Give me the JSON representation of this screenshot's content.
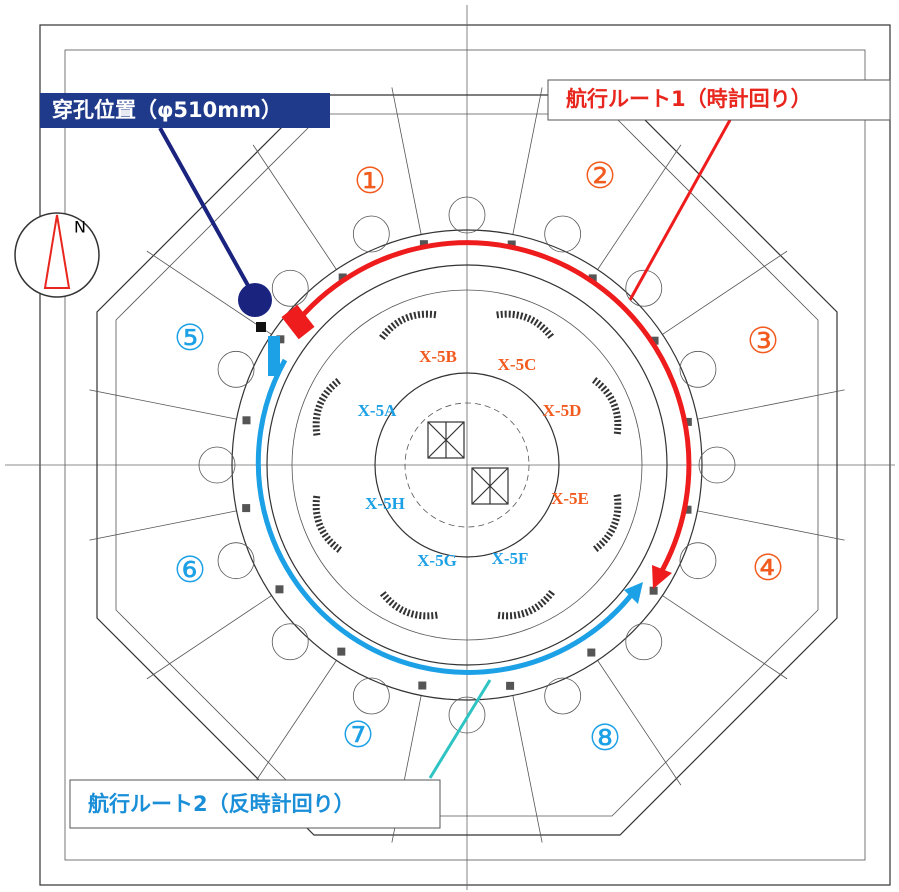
{
  "callouts": {
    "drill_position": "穿孔位置（φ510mm）",
    "route1": "航行ルート1（時計回り）",
    "route2": "航行ルート2（反時計回り）"
  },
  "compass": {
    "label": "N"
  },
  "sectors": [
    "①",
    "②",
    "③",
    "④",
    "⑤",
    "⑥",
    "⑦",
    "⑧"
  ],
  "penetrations": [
    "X-5A",
    "X-5B",
    "X-5C",
    "X-5D",
    "X-5E",
    "X-5F",
    "X-5G",
    "X-5H"
  ]
}
